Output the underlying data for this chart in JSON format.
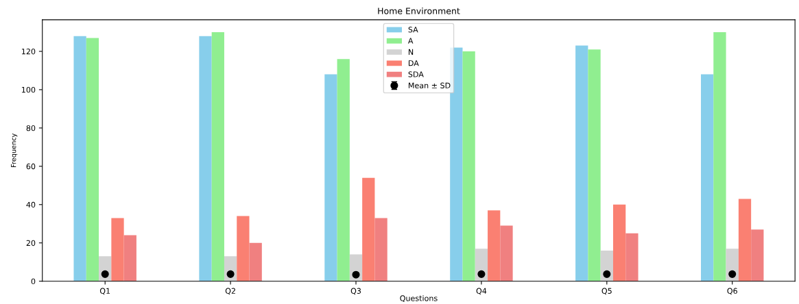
{
  "chart_data": {
    "type": "bar",
    "title": "Home Environment",
    "xlabel": "Questions",
    "ylabel": "Frequency",
    "categories": [
      "Q1",
      "Q2",
      "Q3",
      "Q4",
      "Q5",
      "Q6"
    ],
    "series": [
      {
        "name": "SA",
        "color": "#87ceeb",
        "values": [
          128,
          128,
          108,
          122,
          123,
          108
        ]
      },
      {
        "name": "A",
        "color": "#90ee90",
        "values": [
          127,
          130,
          116,
          120,
          121,
          130
        ]
      },
      {
        "name": "N",
        "color": "#d3d3d3",
        "values": [
          13,
          13,
          14,
          17,
          16,
          17
        ]
      },
      {
        "name": "DA",
        "color": "#fa8072",
        "values": [
          33,
          34,
          54,
          37,
          40,
          43
        ]
      },
      {
        "name": "SDA",
        "color": "#f08080",
        "values": [
          24,
          20,
          33,
          29,
          25,
          27
        ]
      },
      {
        "name": "Mean ± SD",
        "type": "scatter",
        "color": "#000000",
        "x": [
          "Q1",
          "Q2",
          "Q3",
          "Q4",
          "Q5",
          "Q6"
        ],
        "values": [
          3.7,
          3.7,
          3.4,
          3.7,
          3.7,
          3.7
        ],
        "errors": [
          1,
          1,
          1,
          1,
          1,
          1
        ]
      }
    ],
    "ylim": [
      0,
      136.5
    ],
    "yticks": [
      0,
      20,
      40,
      60,
      80,
      100,
      120
    ],
    "legend": "top",
    "grid": false,
    "marker": "circle"
  }
}
